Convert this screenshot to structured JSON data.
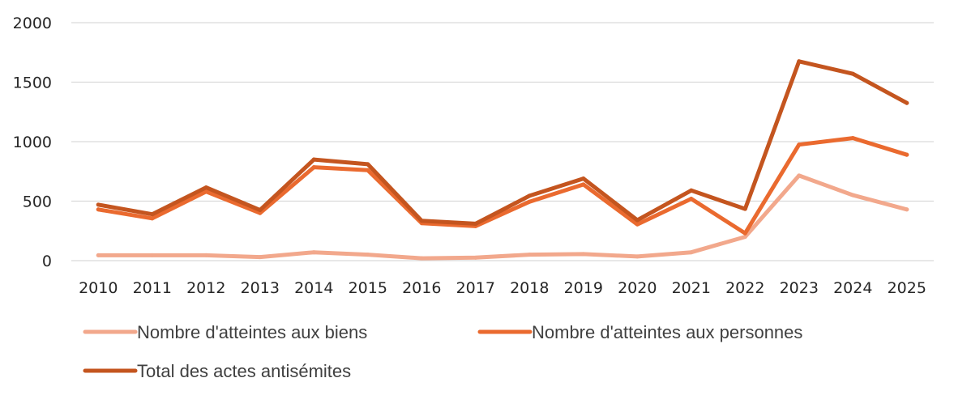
{
  "chart_data": {
    "type": "line",
    "title": "",
    "xlabel": "",
    "ylabel": "",
    "categories": [
      "2010",
      "2011",
      "2012",
      "2013",
      "2014",
      "2015",
      "2016",
      "2017",
      "2018",
      "2019",
      "2020",
      "2021",
      "2022",
      "2023",
      "2024",
      "2025"
    ],
    "ylim": [
      0,
      2000
    ],
    "yticks": [
      0,
      500,
      1000,
      1500,
      2000
    ],
    "grid": true,
    "legend_position": "bottom",
    "series": [
      {
        "name": "Nombre d'atteintes aux biens",
        "color": "#F2A88C",
        "values": [
          45,
          45,
          45,
          30,
          70,
          50,
          20,
          25,
          50,
          55,
          35,
          70,
          200,
          715,
          550,
          430
        ]
      },
      {
        "name": "Nombre d'atteintes aux personnes",
        "color": "#EA6A2F",
        "values": [
          430,
          355,
          580,
          400,
          785,
          760,
          315,
          290,
          495,
          640,
          305,
          520,
          230,
          975,
          1030,
          890
        ]
      },
      {
        "name": "Total des actes antisémites",
        "color": "#C4551F",
        "values": [
          470,
          390,
          615,
          425,
          850,
          810,
          335,
          310,
          545,
          690,
          340,
          590,
          435,
          1675,
          1570,
          1325
        ]
      }
    ]
  }
}
